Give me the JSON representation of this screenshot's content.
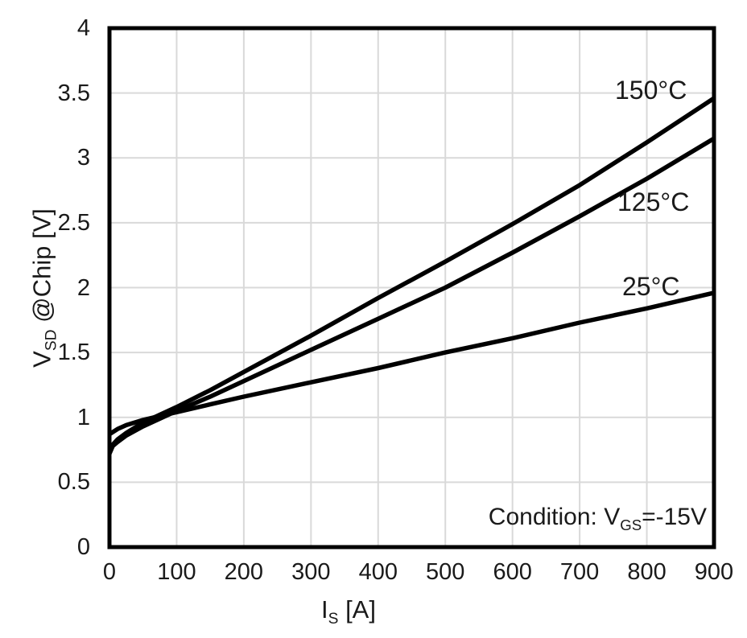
{
  "chart_data": {
    "type": "line",
    "title": "",
    "xlabel": "I_S [A]",
    "ylabel": "V_SD @Chip [V]",
    "x_range": [
      0,
      900
    ],
    "y_range": [
      0,
      4
    ],
    "x_ticks": [
      0,
      100,
      200,
      300,
      400,
      500,
      600,
      700,
      800,
      900
    ],
    "y_ticks": [
      0,
      0.5,
      1,
      1.5,
      2,
      2.5,
      3,
      3.5,
      4
    ],
    "x_tick_labels": [
      "0",
      "100",
      "200",
      "300",
      "400",
      "500",
      "600",
      "700",
      "800",
      "900"
    ],
    "y_tick_labels": [
      "0",
      "0.5",
      "1",
      "1.5",
      "2",
      "2.5",
      "3",
      "3.5",
      "4"
    ],
    "grid": true,
    "legend_position": "inline-labels-right",
    "annotation": "Condition: V_GS=-15V",
    "series": [
      {
        "label": "150°C",
        "x": [
          0,
          5,
          12,
          25,
          50,
          75,
          100,
          150,
          200,
          300,
          400,
          500,
          600,
          700,
          800,
          900
        ],
        "y": [
          0.73,
          0.79,
          0.83,
          0.88,
          0.96,
          1.02,
          1.08,
          1.21,
          1.35,
          1.63,
          1.92,
          2.2,
          2.49,
          2.79,
          3.12,
          3.46
        ]
      },
      {
        "label": "125°C",
        "x": [
          0,
          5,
          12,
          25,
          50,
          75,
          100,
          150,
          200,
          300,
          400,
          500,
          600,
          700,
          800,
          900
        ],
        "y": [
          0.72,
          0.78,
          0.81,
          0.86,
          0.93,
          0.99,
          1.05,
          1.16,
          1.28,
          1.52,
          1.76,
          2.0,
          2.27,
          2.55,
          2.84,
          3.15
        ]
      },
      {
        "label": "25°C",
        "x": [
          0,
          12,
          25,
          50,
          75,
          100,
          150,
          200,
          300,
          400,
          500,
          600,
          700,
          800,
          900
        ],
        "y": [
          0.87,
          0.91,
          0.94,
          0.98,
          1.01,
          1.04,
          1.1,
          1.16,
          1.27,
          1.38,
          1.5,
          1.61,
          1.73,
          1.84,
          1.96
        ]
      }
    ]
  },
  "y_axis_title": {
    "main": "V",
    "sub": "SD",
    "rest": " @Chip [V]"
  },
  "x_axis_title": {
    "main": "I",
    "sub": "S",
    "rest": " [A]"
  },
  "condition": {
    "pre": "Condition: V",
    "sub": "GS",
    "post": "=-15V"
  },
  "colors": {
    "curve": "#000000",
    "frame": "#000000",
    "grid": "#d9d9d9",
    "text": "#1a1a1a",
    "background": "#ffffff"
  }
}
